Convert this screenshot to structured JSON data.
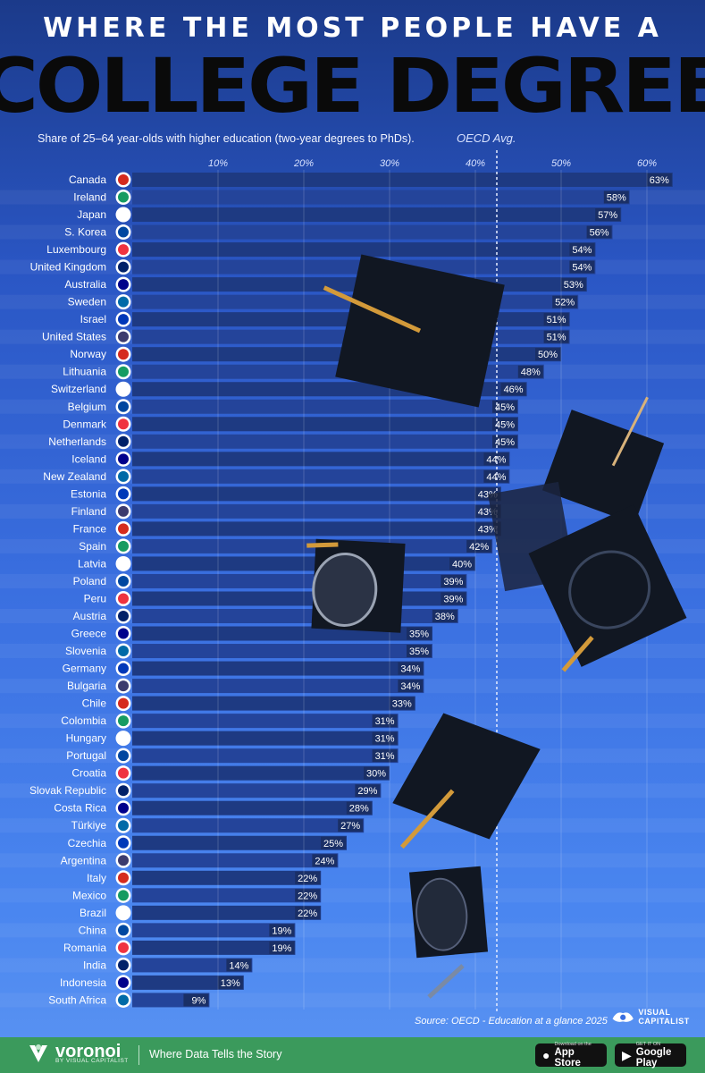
{
  "header": {
    "title_top": "WHERE THE MOST PEOPLE HAVE A",
    "title_main": "COLLEGE DEGREE",
    "subtitle": "Share of 25–64 year-olds with higher education (two-year degrees to PhDs).",
    "oecd_label": "OECD Avg."
  },
  "chart_data": {
    "type": "bar",
    "orientation": "horizontal",
    "title": "WHERE THE MOST PEOPLE HAVE A COLLEGE DEGREE",
    "subtitle": "Share of 25–64 year-olds with higher education (two-year degrees to PhDs).",
    "x_ticks": [
      "10%",
      "20%",
      "30%",
      "40%",
      "50%",
      "60%"
    ],
    "x_tick_values": [
      10,
      20,
      30,
      40,
      50,
      60
    ],
    "xlim": [
      0,
      63
    ],
    "reference_line": {
      "label": "OECD Avg.",
      "value": 42.5
    },
    "unit": "%",
    "categories": [
      "Canada",
      "Ireland",
      "Japan",
      "S. Korea",
      "Luxembourg",
      "United Kingdom",
      "Australia",
      "Sweden",
      "Israel",
      "United States",
      "Norway",
      "Lithuania",
      "Switzerland",
      "Belgium",
      "Denmark",
      "Netherlands",
      "Iceland",
      "New Zealand",
      "Estonia",
      "Finland",
      "France",
      "Spain",
      "Latvia",
      "Poland",
      "Peru",
      "Austria",
      "Greece",
      "Slovenia",
      "Germany",
      "Bulgaria",
      "Chile",
      "Colombia",
      "Hungary",
      "Portugal",
      "Croatia",
      "Slovak Republic",
      "Costa Rica",
      "Türkiye",
      "Czechia",
      "Argentina",
      "Italy",
      "Mexico",
      "Brazil",
      "China",
      "Romania",
      "India",
      "Indonesia",
      "South Africa"
    ],
    "values": [
      63,
      58,
      57,
      56,
      54,
      54,
      53,
      52,
      51,
      51,
      50,
      48,
      46,
      45,
      45,
      45,
      44,
      44,
      43,
      43,
      43,
      42,
      40,
      39,
      39,
      38,
      35,
      35,
      34,
      34,
      33,
      31,
      31,
      31,
      30,
      29,
      28,
      27,
      25,
      24,
      22,
      22,
      22,
      19,
      19,
      14,
      13,
      9
    ],
    "value_labels": [
      "63%",
      "58%",
      "57%",
      "56%",
      "54%",
      "54%",
      "53%",
      "52%",
      "51%",
      "51%",
      "50%",
      "48%",
      "46%",
      "45%",
      "45%",
      "45%",
      "44%",
      "44%",
      "43%",
      "43%",
      "43%",
      "42%",
      "40%",
      "39%",
      "39%",
      "38%",
      "35%",
      "35%",
      "34%",
      "34%",
      "33%",
      "31%",
      "31%",
      "31%",
      "30%",
      "29%",
      "28%",
      "27%",
      "25%",
      "24%",
      "22%",
      "22%",
      "22%",
      "19%",
      "19%",
      "14%",
      "13%",
      "9%"
    ],
    "colors": {
      "bar": "#1e3a82",
      "bar_alt": "#24449a",
      "label_bg": "#1a2f66",
      "reference": "#e6ecff"
    }
  },
  "footer": {
    "source": "Source: OECD - Education at a glance 2025",
    "vc_logo": "VISUAL CAPITALIST",
    "brand_name": "voronoi",
    "brand_by": "BY VISUAL CAPITALIST",
    "tagline": "Where Data Tells the Story",
    "apple_small": "Download on the",
    "apple_big": "App Store",
    "google_small": "GET IT ON",
    "google_big": "Google Play"
  }
}
